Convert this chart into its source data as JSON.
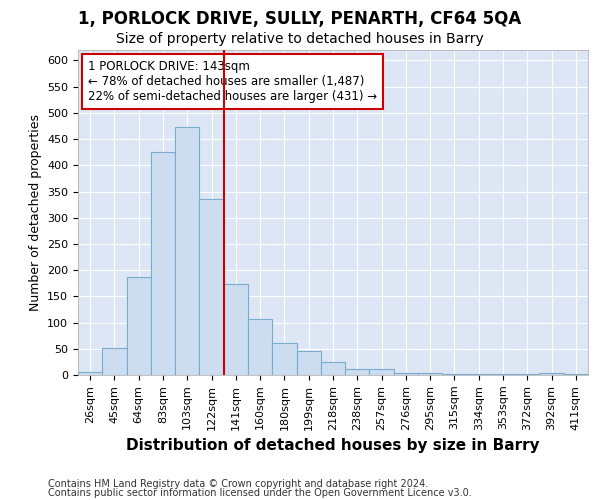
{
  "title": "1, PORLOCK DRIVE, SULLY, PENARTH, CF64 5QA",
  "subtitle": "Size of property relative to detached houses in Barry",
  "xlabel": "Distribution of detached houses by size in Barry",
  "ylabel": "Number of detached properties",
  "categories": [
    "26sqm",
    "45sqm",
    "64sqm",
    "83sqm",
    "103sqm",
    "122sqm",
    "141sqm",
    "160sqm",
    "180sqm",
    "199sqm",
    "218sqm",
    "238sqm",
    "257sqm",
    "276sqm",
    "295sqm",
    "315sqm",
    "334sqm",
    "353sqm",
    "372sqm",
    "392sqm",
    "411sqm"
  ],
  "values": [
    5,
    51,
    187,
    425,
    474,
    335,
    173,
    107,
    61,
    46,
    24,
    11,
    11,
    4,
    3,
    2,
    1,
    1,
    1,
    3,
    2
  ],
  "bar_color": "#ccddf0",
  "bar_edge_color": "#7aabcf",
  "vline_color": "#cc0000",
  "vline_index": 6,
  "annotation_title": "1 PORLOCK DRIVE: 143sqm",
  "annotation_line1": "← 78% of detached houses are smaller (1,487)",
  "annotation_line2": "22% of semi-detached houses are larger (431) →",
  "annotation_box_color": "#ffffff",
  "annotation_box_edge": "#cc0000",
  "ylim": [
    0,
    620
  ],
  "yticks": [
    0,
    50,
    100,
    150,
    200,
    250,
    300,
    350,
    400,
    450,
    500,
    550,
    600
  ],
  "plot_bg_color": "#dce6f5",
  "fig_bg_color": "#ffffff",
  "footer1": "Contains HM Land Registry data © Crown copyright and database right 2024.",
  "footer2": "Contains public sector information licensed under the Open Government Licence v3.0.",
  "title_fontsize": 12,
  "subtitle_fontsize": 10,
  "xlabel_fontsize": 11,
  "ylabel_fontsize": 9,
  "tick_fontsize": 8,
  "annotation_fontsize": 8.5,
  "footer_fontsize": 7
}
